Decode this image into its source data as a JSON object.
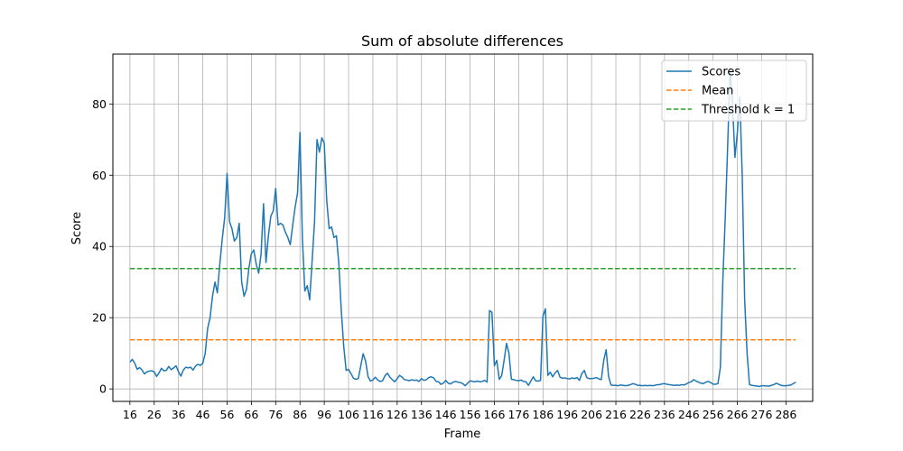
{
  "chart_data": {
    "type": "line",
    "title": "Sum of absolute differences",
    "xlabel": "Frame",
    "ylabel": "Score",
    "xlim": [
      9,
      297
    ],
    "ylim": [
      -3.5,
      94
    ],
    "grid": true,
    "legend_position": "top-right",
    "xticks": [
      16,
      26,
      36,
      46,
      56,
      66,
      76,
      86,
      96,
      106,
      116,
      126,
      136,
      146,
      156,
      166,
      176,
      186,
      196,
      206,
      216,
      226,
      236,
      246,
      256,
      266,
      276,
      286
    ],
    "yticks": [
      0,
      20,
      40,
      60,
      80
    ],
    "series": [
      {
        "name": "Scores",
        "color": "#1f77b4",
        "style": "solid",
        "x": [
          16,
          17,
          18,
          19,
          20,
          21,
          22,
          23,
          24,
          25,
          26,
          27,
          28,
          29,
          30,
          31,
          32,
          33,
          34,
          35,
          36,
          37,
          38,
          39,
          40,
          41,
          42,
          43,
          44,
          45,
          46,
          47,
          48,
          49,
          50,
          51,
          52,
          53,
          54,
          55,
          56,
          57,
          58,
          59,
          60,
          61,
          62,
          63,
          64,
          65,
          66,
          67,
          68,
          69,
          70,
          71,
          72,
          73,
          74,
          75,
          76,
          77,
          78,
          79,
          80,
          81,
          82,
          83,
          84,
          85,
          86,
          87,
          88,
          89,
          90,
          91,
          92,
          93,
          94,
          95,
          96,
          97,
          98,
          99,
          100,
          101,
          102,
          103,
          104,
          105,
          106,
          107,
          108,
          109,
          110,
          111,
          112,
          113,
          114,
          115,
          116,
          117,
          118,
          119,
          120,
          121,
          122,
          123,
          124,
          125,
          126,
          127,
          128,
          129,
          130,
          131,
          132,
          133,
          134,
          135,
          136,
          137,
          138,
          139,
          140,
          141,
          142,
          143,
          144,
          145,
          146,
          147,
          148,
          149,
          150,
          151,
          152,
          153,
          154,
          155,
          156,
          157,
          158,
          159,
          160,
          161,
          162,
          163,
          164,
          165,
          166,
          167,
          168,
          169,
          170,
          171,
          172,
          173,
          174,
          175,
          176,
          177,
          178,
          179,
          180,
          181,
          182,
          183,
          184,
          185,
          186,
          187,
          188,
          189,
          190,
          191,
          192,
          193,
          194,
          195,
          196,
          197,
          198,
          199,
          200,
          201,
          202,
          203,
          204,
          205,
          206,
          207,
          208,
          209,
          210,
          211,
          212,
          213,
          214,
          215,
          216,
          217,
          218,
          219,
          220,
          221,
          222,
          223,
          224,
          225,
          226,
          227,
          228,
          229,
          230,
          231,
          232,
          233,
          234,
          235,
          236,
          237,
          238,
          239,
          240,
          241,
          242,
          243,
          244,
          245,
          246,
          247,
          248,
          249,
          250,
          251,
          252,
          253,
          254,
          255,
          256,
          257,
          258,
          259,
          260,
          261,
          262,
          263,
          264,
          265,
          266,
          267,
          268,
          269,
          270,
          271,
          272,
          273,
          274,
          275,
          276,
          277,
          278,
          279,
          280,
          281,
          282,
          283,
          284,
          285,
          286,
          287,
          288,
          289,
          290
        ],
        "y": [
          7.5,
          8.3,
          7.2,
          5.5,
          6.0,
          5.3,
          4.2,
          4.8,
          5.0,
          5.1,
          4.8,
          3.5,
          4.5,
          5.8,
          5.1,
          5.2,
          6.3,
          5.4,
          5.9,
          6.5,
          4.8,
          3.6,
          5.3,
          6.1,
          5.9,
          6.1,
          5.3,
          6.4,
          6.9,
          6.6,
          7.2,
          10,
          17,
          20,
          26,
          30,
          27,
          35,
          42,
          48,
          60.5,
          47,
          45,
          41.5,
          42.5,
          46.5,
          30,
          26,
          28,
          34,
          38,
          39,
          35,
          32.5,
          38,
          52,
          35.5,
          43,
          48.5,
          50,
          56.3,
          46,
          46.5,
          46,
          44,
          42.5,
          40.5,
          46,
          51,
          55,
          72,
          42,
          27.5,
          29,
          25,
          36,
          47,
          70,
          66.5,
          70.5,
          69,
          53,
          45,
          45.5,
          42.5,
          43,
          35,
          22,
          12,
          5.2,
          5.5,
          4.3,
          3.0,
          2.7,
          2.9,
          6.4,
          9.9,
          7.8,
          3.5,
          2.2,
          2.5,
          3.3,
          2.5,
          2.1,
          2.3,
          3.7,
          4.4,
          3.3,
          2.6,
          2.0,
          2.9,
          3.8,
          3.3,
          2.6,
          2.5,
          2.3,
          2.6,
          2.4,
          2.5,
          2.1,
          2.9,
          2.4,
          2.6,
          3.2,
          3.4,
          3.1,
          2.1,
          2.0,
          1.3,
          1.6,
          2.4,
          1.6,
          1.4,
          1.9,
          2.1,
          1.9,
          1.8,
          1.5,
          0.9,
          1.6,
          2.3,
          2.1,
          2.0,
          2.2,
          2.0,
          2.1,
          2.4,
          1.9,
          22,
          21.5,
          6.5,
          8,
          2.7,
          3.7,
          8,
          12.8,
          10,
          2.7,
          2.6,
          2.4,
          2.3,
          2.5,
          2.1,
          2.0,
          1.0,
          2.2,
          3.4,
          2.3,
          2.2,
          2.4,
          20.5,
          22.5,
          3.8,
          4.7,
          3.4,
          4.5,
          5.2,
          3.3,
          3.0,
          3.1,
          2.9,
          2.8,
          3.1,
          2.9,
          3.2,
          2.4,
          4.3,
          5.2,
          3.2,
          2.9,
          2.9,
          3.0,
          3.2,
          2.8,
          2.6,
          8,
          11,
          3.5,
          1.1,
          1.0,
          1.0,
          0.9,
          1.1,
          1.0,
          0.9,
          1.0,
          1.2,
          1.5,
          1.3,
          1.0,
          1.0,
          0.9,
          1.0,
          0.9,
          1.0,
          0.9,
          1.0,
          1.2,
          1.2,
          1.4,
          1.5,
          1.3,
          1.2,
          1.1,
          1.0,
          1.1,
          1.0,
          1.2,
          1.1,
          1.4,
          1.8,
          2.0,
          2.6,
          2.2,
          1.9,
          1.6,
          1.5,
          1.9,
          2.1,
          1.8,
          1.3,
          1.3,
          1.5,
          6,
          30,
          48,
          68,
          90,
          80,
          65,
          72,
          82,
          60,
          25,
          10,
          1.2,
          1.0,
          0.9,
          0.8,
          0.7,
          0.9,
          0.9,
          0.8,
          0.8,
          1.0,
          1.2,
          1.6,
          1.3,
          1.0,
          0.9,
          0.9,
          1.0,
          1.1,
          1.5,
          1.9
        ]
      },
      {
        "name": "Mean",
        "color": "#ff7f0e",
        "style": "dashed",
        "x": [
          16,
          290
        ],
        "y": [
          13.8,
          13.8
        ]
      },
      {
        "name": "Threshold k = 1",
        "color": "#2ca02c",
        "style": "dashed",
        "x": [
          16,
          290
        ],
        "y": [
          33.8,
          33.8
        ]
      }
    ]
  }
}
